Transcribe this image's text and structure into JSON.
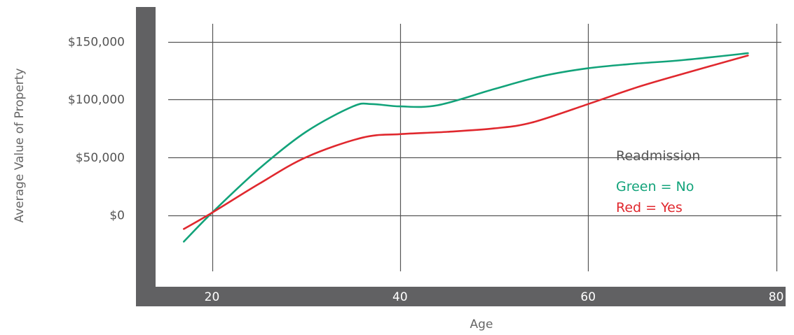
{
  "chart_data": {
    "type": "line",
    "title": "",
    "xlabel": "Age",
    "ylabel": "Average Value of Property",
    "xlim": [
      14,
      81
    ],
    "ylim": [
      -62000,
      180000
    ],
    "x_ticks": [
      20,
      40,
      60,
      80
    ],
    "x_tick_labels": [
      "20",
      "40",
      "60",
      "80"
    ],
    "y_ticks": [
      0,
      50000,
      100000,
      150000
    ],
    "y_tick_labels": [
      "$0",
      "$50,000",
      "$100,000",
      "$150,000"
    ],
    "grid": true,
    "legend": {
      "title": "Readmission",
      "placement": "right",
      "entries": [
        {
          "label": "Green = No",
          "color": "#12a37a"
        },
        {
          "label": "Red = Yes",
          "color": "#e0282e"
        }
      ]
    },
    "series": [
      {
        "color": "#12a37a",
        "x": [
          17,
          20,
          25,
          30,
          35,
          37,
          40,
          44,
          50,
          55,
          60,
          65,
          70,
          77
        ],
        "y": [
          -23000,
          2000,
          40000,
          72000,
          94000,
          96000,
          94000,
          95000,
          109000,
          120000,
          127000,
          131000,
          134000,
          140000
        ]
      },
      {
        "color": "#e0282e",
        "x": [
          17,
          20,
          25,
          30,
          36,
          40,
          45,
          50,
          54,
          60,
          65,
          70,
          77
        ],
        "y": [
          -12000,
          2000,
          27000,
          50000,
          67000,
          70000,
          72000,
          75000,
          80000,
          96000,
          110000,
          122000,
          138000
        ]
      }
    ],
    "colors": {
      "frame": "#616163",
      "grid": "#555555",
      "background": "#ffffff"
    }
  }
}
